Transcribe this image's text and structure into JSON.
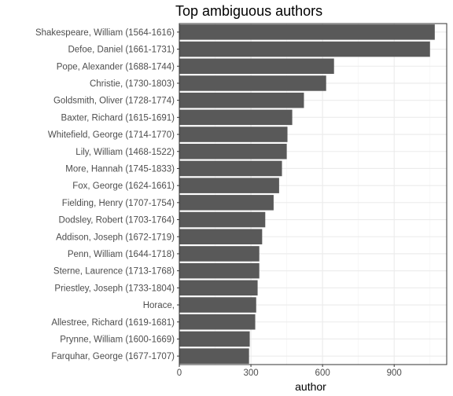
{
  "chart_data": {
    "type": "bar",
    "orientation": "horizontal",
    "title": "Top ambiguous authors",
    "xlabel": "author",
    "ylabel": "",
    "xlim": [
      0,
      1120
    ],
    "xticks": [
      0,
      300,
      600,
      900
    ],
    "xtick_labels": [
      "0",
      "300",
      "600",
      "900"
    ],
    "grid": true,
    "theme": "bw",
    "bar_color": "#595959",
    "categories": [
      "Shakespeare, William (1564-1616)",
      "Defoe, Daniel (1661-1731)",
      "Pope, Alexander (1688-1744)",
      "Christie,  (1730-1803)",
      "Goldsmith, Oliver (1728-1774)",
      "Baxter, Richard (1615-1691)",
      "Whitefield, George (1714-1770)",
      "Lily, William (1468-1522)",
      "More, Hannah (1745-1833)",
      "Fox, George (1624-1661)",
      "Fielding, Henry (1707-1754)",
      "Dodsley, Robert (1703-1764)",
      "Addison, Joseph (1672-1719)",
      "Penn, William (1644-1718)",
      "Sterne, Laurence (1713-1768)",
      "Priestley, Joseph (1733-1804)",
      "Horace, ",
      "Allestree, Richard (1619-1681)",
      "Prynne, William (1600-1669)",
      "Farquhar, George (1677-1707)"
    ],
    "values": [
      1070,
      1050,
      648,
      615,
      522,
      473,
      453,
      450,
      430,
      418,
      395,
      360,
      347,
      335,
      335,
      328,
      322,
      318,
      295,
      292
    ]
  }
}
